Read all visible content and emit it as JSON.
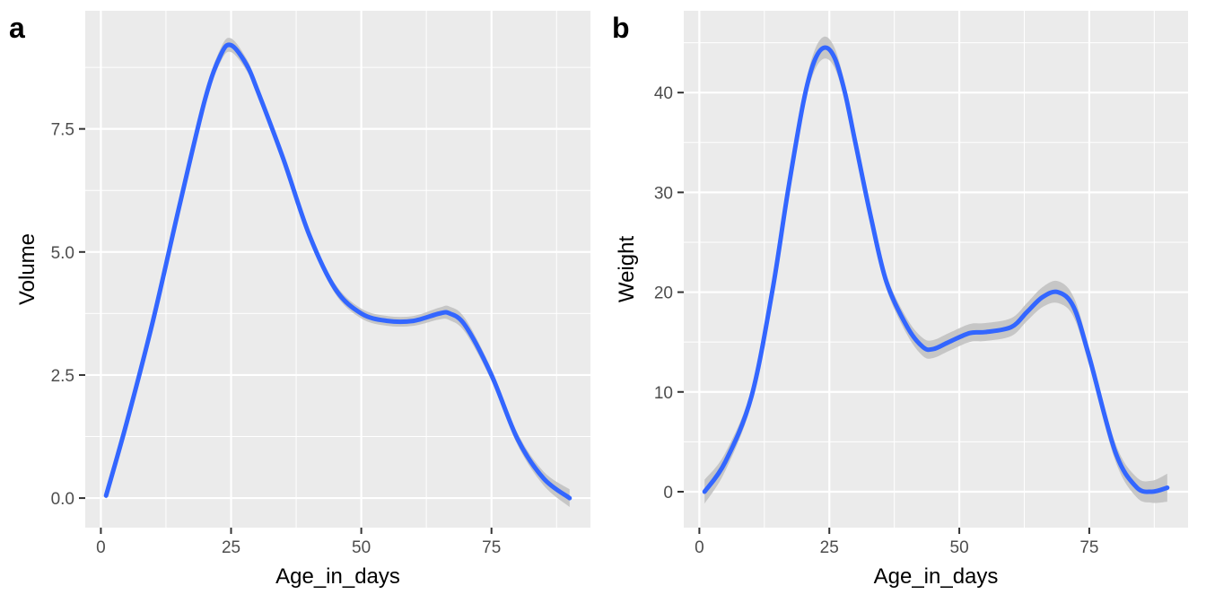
{
  "chart_data": [
    {
      "tag": "a",
      "type": "line",
      "xlabel": "Age_in_days",
      "ylabel": "Volume",
      "xlim": [
        -3,
        94
      ],
      "ylim": [
        -0.6,
        9.9
      ],
      "x_ticks": [
        0,
        25,
        50,
        75
      ],
      "x_tick_labels": [
        "0",
        "25",
        "50",
        "75"
      ],
      "y_ticks": [
        0,
        2.5,
        5,
        7.5
      ],
      "y_tick_labels": [
        "0.0",
        "2.5",
        "5.0",
        "7.5"
      ],
      "grid": true,
      "colors": {
        "line": "#3366FF",
        "band": "#BFBFBF",
        "panel": "#EBEBEB",
        "grid": "#FFFFFF"
      },
      "series": [
        {
          "x": [
            1,
            5,
            10,
            15,
            20,
            23,
            25,
            28,
            30,
            35,
            40,
            45,
            50,
            55,
            60,
            65,
            67,
            70,
            75,
            80,
            85,
            90
          ],
          "y": [
            0.05,
            1.55,
            3.6,
            5.9,
            8.1,
            9.0,
            9.2,
            8.8,
            8.3,
            6.9,
            5.35,
            4.25,
            3.75,
            3.6,
            3.6,
            3.75,
            3.75,
            3.5,
            2.5,
            1.2,
            0.4,
            0.0
          ],
          "ci": [
            0.08,
            0.08,
            0.08,
            0.1,
            0.12,
            0.14,
            0.14,
            0.12,
            0.1,
            0.08,
            0.08,
            0.1,
            0.1,
            0.1,
            0.1,
            0.12,
            0.14,
            0.14,
            0.12,
            0.12,
            0.14,
            0.18
          ]
        }
      ]
    },
    {
      "tag": "b",
      "type": "line",
      "xlabel": "Age_in_days",
      "ylabel": "Weight",
      "xlim": [
        -3,
        94
      ],
      "ylim": [
        -3.6,
        48.2
      ],
      "x_ticks": [
        0,
        25,
        50,
        75
      ],
      "x_tick_labels": [
        "0",
        "25",
        "50",
        "75"
      ],
      "y_ticks": [
        0,
        10,
        20,
        30,
        40
      ],
      "y_tick_labels": [
        "0",
        "10",
        "20",
        "30",
        "40"
      ],
      "grid": true,
      "colors": {
        "line": "#3366FF",
        "band": "#BFBFBF",
        "panel": "#EBEBEB",
        "grid": "#FFFFFF"
      },
      "series": [
        {
          "x": [
            1,
            5,
            10,
            14,
            17,
            20,
            22,
            24,
            26,
            28,
            30,
            33,
            36,
            40,
            43,
            45,
            48,
            52,
            55,
            60,
            63,
            66,
            69,
            72,
            75,
            80,
            84,
            87,
            90
          ],
          "y": [
            0.0,
            3.0,
            9.5,
            20.0,
            30.0,
            39.0,
            43.0,
            44.5,
            43.5,
            40.0,
            35.0,
            27.5,
            21.0,
            16.5,
            14.5,
            14.3,
            15.0,
            15.9,
            16.0,
            16.5,
            18.0,
            19.5,
            20.0,
            18.5,
            13.5,
            4.0,
            0.5,
            0.0,
            0.4
          ],
          "ci": [
            1.2,
            0.9,
            0.7,
            0.6,
            0.7,
            0.8,
            1.0,
            1.1,
            1.0,
            0.9,
            0.8,
            0.7,
            0.7,
            0.8,
            0.9,
            0.9,
            0.9,
            0.9,
            0.9,
            0.9,
            0.9,
            1.0,
            1.1,
            1.0,
            0.9,
            0.9,
            1.0,
            1.1,
            1.4
          ]
        }
      ]
    }
  ]
}
